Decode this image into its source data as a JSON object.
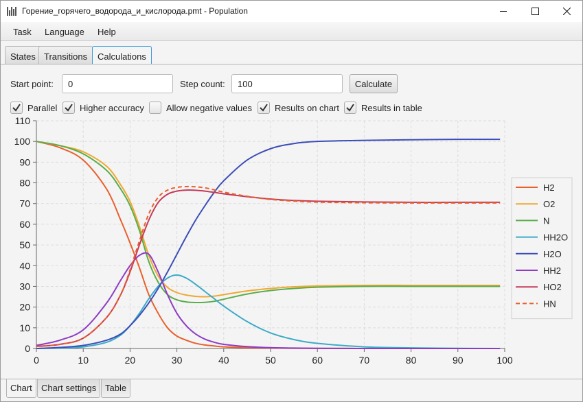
{
  "window": {
    "title": "Горение_горячего_водорода_и_кислорода.pmt - Population"
  },
  "menu": [
    "Task",
    "Language",
    "Help"
  ],
  "tabs": {
    "states": "States",
    "transitions": "Transitions",
    "calculations": "Calculations",
    "active": "Calculations"
  },
  "controls": {
    "start_point_label": "Start point:",
    "start_point_value": "0",
    "step_count_label": "Step count:",
    "step_count_value": "100",
    "calculate_label": "Calculate"
  },
  "options": [
    {
      "label": "Parallel",
      "checked": true
    },
    {
      "label": "Higher accuracy",
      "checked": true
    },
    {
      "label": "Allow negative values",
      "checked": false
    },
    {
      "label": "Results on chart",
      "checked": true
    },
    {
      "label": "Results in table",
      "checked": true
    }
  ],
  "bottom_tabs": {
    "chart": "Chart",
    "chart_settings": "Chart settings",
    "table": "Table",
    "active": "Chart"
  },
  "chart_data": {
    "type": "line",
    "xlim": [
      0,
      100
    ],
    "ylim": [
      0,
      110
    ],
    "x_ticks": [
      "0",
      "10",
      "20",
      "30",
      "40",
      "50",
      "60",
      "70",
      "80",
      "90",
      "100"
    ],
    "y_ticks": [
      "0",
      "10",
      "20",
      "30",
      "40",
      "50",
      "60",
      "70",
      "80",
      "90",
      "100",
      "110"
    ],
    "grid": true,
    "legend_position": "right",
    "x": [
      0,
      5,
      10,
      15,
      18,
      20,
      22,
      24,
      26,
      28,
      30,
      32,
      34,
      36,
      38,
      40,
      45,
      50,
      55,
      60,
      70,
      80,
      90,
      99
    ],
    "series": [
      {
        "name": "H2",
        "color": "#e8602c",
        "dashed": false,
        "values": [
          100,
          97,
          91,
          77,
          62,
          51,
          39,
          26,
          17,
          10,
          6,
          4,
          2.5,
          1.7,
          1.2,
          0.8,
          0.4,
          0.2,
          0.1,
          0.05,
          0.02,
          0,
          0,
          0
        ]
      },
      {
        "name": "O2",
        "color": "#f0a830",
        "dashed": false,
        "values": [
          100,
          98,
          95,
          88,
          79,
          71,
          59,
          45,
          35,
          29.5,
          27,
          25.8,
          25.2,
          25,
          25.3,
          26,
          27.8,
          29,
          29.8,
          30.2,
          30.5,
          30.5,
          30.5,
          30.5
        ]
      },
      {
        "name": "N",
        "color": "#5aad4a",
        "dashed": false,
        "values": [
          100,
          98,
          94,
          86,
          77,
          69,
          57,
          42,
          32,
          26,
          23.5,
          22.5,
          22.2,
          22.3,
          22.8,
          23.8,
          26.3,
          28,
          29,
          29.6,
          30,
          30,
          30,
          30
        ]
      },
      {
        "name": "HH2O",
        "color": "#3cabc8",
        "dashed": false,
        "values": [
          0,
          0.2,
          0.8,
          3,
          6.5,
          11,
          17,
          24,
          30,
          34,
          35.5,
          34,
          31,
          27.5,
          24,
          20.5,
          13,
          7.5,
          4.3,
          2.5,
          0.8,
          0.3,
          0.1,
          0
        ]
      },
      {
        "name": "H2O",
        "color": "#3b4db8",
        "dashed": false,
        "values": [
          0,
          0.5,
          1.5,
          4,
          7,
          11,
          16,
          22,
          29,
          37,
          45.5,
          54,
          62,
          69,
          75.5,
          81,
          91,
          96.5,
          99,
          100,
          100.5,
          100.8,
          101,
          101
        ]
      },
      {
        "name": "HH2",
        "color": "#8e3cc4",
        "dashed": false,
        "values": [
          1.5,
          4,
          9,
          22,
          33,
          40,
          45,
          45.5,
          37,
          26,
          17,
          11,
          7,
          4.5,
          3,
          2,
          0.9,
          0.4,
          0.2,
          0.1,
          0,
          0,
          0,
          0
        ]
      },
      {
        "name": "HO2",
        "color": "#c43a5a",
        "dashed": false,
        "values": [
          1,
          2,
          5,
          15,
          26,
          37,
          50,
          62,
          70.5,
          74.5,
          76,
          76.5,
          76.4,
          76,
          75.4,
          74.7,
          73.3,
          72.2,
          71.5,
          71.1,
          70.8,
          70.6,
          70.6,
          70.6
        ]
      },
      {
        "name": "HN",
        "color": "#e8602c",
        "dashed": true,
        "values": [
          1,
          2,
          5,
          15,
          26,
          38,
          52,
          65,
          73,
          76.5,
          77.8,
          78.2,
          78.1,
          77.6,
          76.6,
          75.5,
          73.5,
          72,
          71.2,
          70.7,
          70.4,
          70.3,
          70.3,
          70.3
        ]
      }
    ]
  }
}
